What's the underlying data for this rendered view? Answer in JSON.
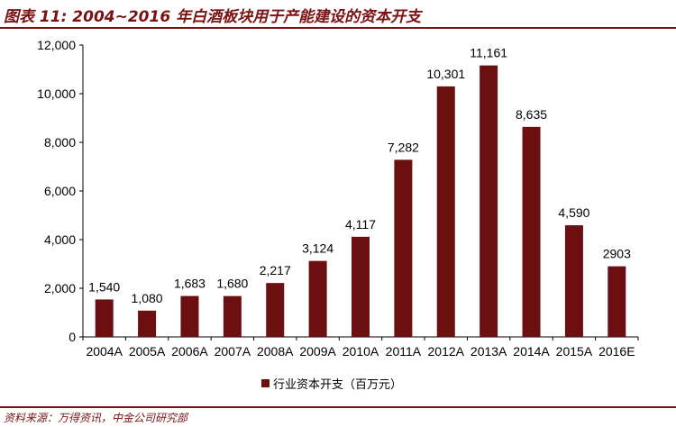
{
  "header": {
    "title": "图表 11: 2004~2016 年白酒板块用于产能建设的资本开支"
  },
  "source": "资料来源：万得资讯，中金公司研究部",
  "colors": {
    "bar": "#6b0f10",
    "accent": "#7b1113"
  },
  "chart_data": {
    "type": "bar",
    "title": "",
    "xlabel": "",
    "ylabel": "",
    "categories": [
      "2004A",
      "2005A",
      "2006A",
      "2007A",
      "2008A",
      "2009A",
      "2010A",
      "2011A",
      "2012A",
      "2013A",
      "2014A",
      "2015A",
      "2016E"
    ],
    "series": [
      {
        "name": "行业资本开支（百万元）",
        "values": [
          1540,
          1080,
          1683,
          1680,
          2217,
          3124,
          4117,
          7282,
          10301,
          11161,
          8635,
          4590,
          2903
        ],
        "labels": [
          "1,540",
          "1,080",
          "1,683",
          "1,680",
          "2,217",
          "3,124",
          "4,117",
          "7,282",
          "10,301",
          "11,161",
          "8,635",
          "4,590",
          "2903"
        ]
      }
    ],
    "ylim": [
      0,
      12000
    ],
    "yticks": [
      0,
      2000,
      4000,
      6000,
      8000,
      10000,
      12000
    ],
    "ytick_labels": [
      "0",
      "2,000",
      "4,000",
      "6,000",
      "8,000",
      "10,000",
      "12,000"
    ],
    "grid": false,
    "legend_position": "bottom-center"
  }
}
